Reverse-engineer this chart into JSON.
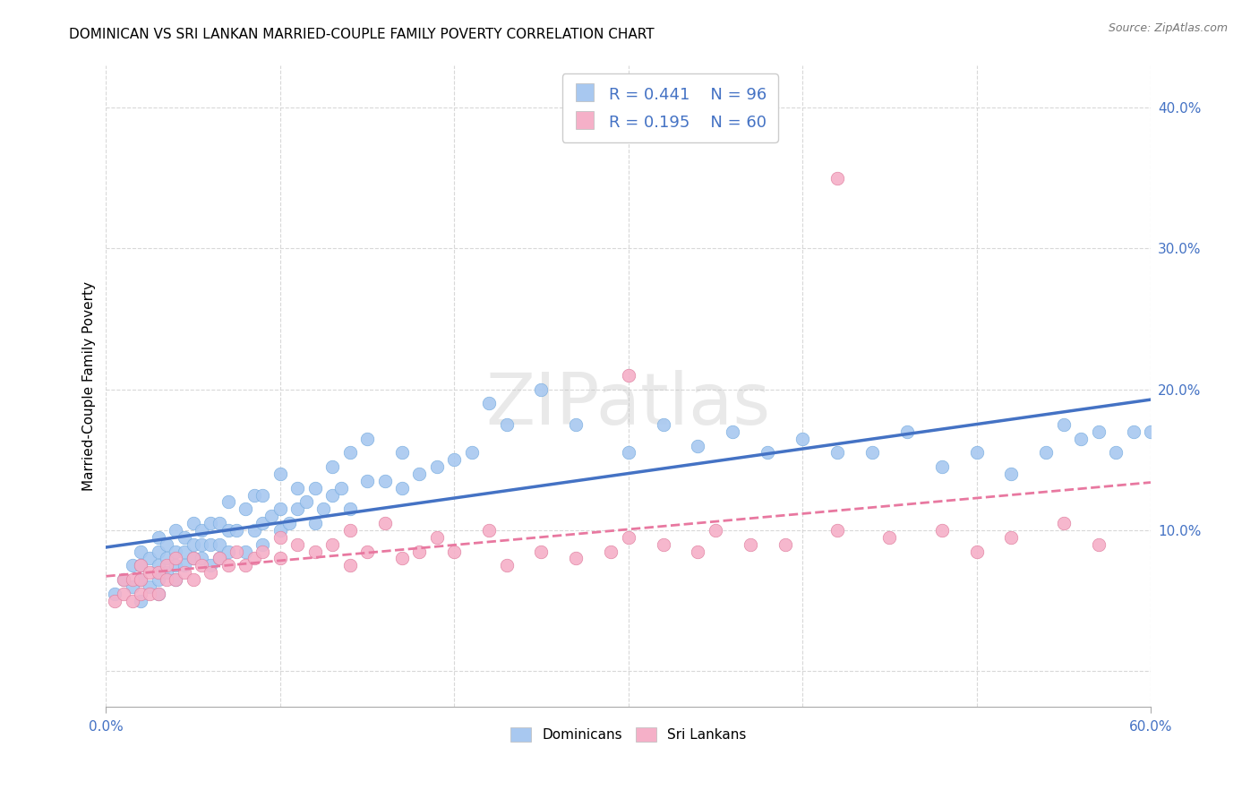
{
  "title": "DOMINICAN VS SRI LANKAN MARRIED-COUPLE FAMILY POVERTY CORRELATION CHART",
  "source": "Source: ZipAtlas.com",
  "ylabel": "Married-Couple Family Poverty",
  "xlim": [
    0.0,
    0.6
  ],
  "ylim": [
    -0.025,
    0.43
  ],
  "yticks": [
    0.0,
    0.1,
    0.2,
    0.3,
    0.4
  ],
  "xticks": [
    0.0,
    0.1,
    0.2,
    0.3,
    0.4,
    0.5,
    0.6
  ],
  "dominican_color": "#a8c8f0",
  "dominican_edge_color": "#7aaee0",
  "srilanka_color": "#f5b0c8",
  "srilanka_edge_color": "#e080a0",
  "dominican_line_color": "#4472c4",
  "srilanka_line_color": "#e878a0",
  "r_dominican": 0.441,
  "n_dominican": 96,
  "r_srilanka": 0.195,
  "n_srilanka": 60,
  "background_color": "#ffffff",
  "grid_color": "#d8d8d8",
  "title_fontsize": 11,
  "axis_label_color": "#4472c4",
  "watermark": "ZIPatlas",
  "dominican_x": [
    0.005,
    0.01,
    0.015,
    0.015,
    0.02,
    0.02,
    0.02,
    0.02,
    0.025,
    0.025,
    0.03,
    0.03,
    0.03,
    0.03,
    0.03,
    0.035,
    0.035,
    0.035,
    0.04,
    0.04,
    0.04,
    0.04,
    0.045,
    0.045,
    0.045,
    0.05,
    0.05,
    0.05,
    0.055,
    0.055,
    0.055,
    0.06,
    0.06,
    0.06,
    0.065,
    0.065,
    0.065,
    0.07,
    0.07,
    0.07,
    0.075,
    0.08,
    0.08,
    0.085,
    0.085,
    0.09,
    0.09,
    0.09,
    0.095,
    0.1,
    0.1,
    0.1,
    0.105,
    0.11,
    0.11,
    0.115,
    0.12,
    0.12,
    0.125,
    0.13,
    0.13,
    0.135,
    0.14,
    0.14,
    0.15,
    0.15,
    0.16,
    0.17,
    0.17,
    0.18,
    0.19,
    0.2,
    0.21,
    0.22,
    0.23,
    0.25,
    0.27,
    0.3,
    0.32,
    0.34,
    0.36,
    0.38,
    0.4,
    0.42,
    0.44,
    0.46,
    0.48,
    0.5,
    0.52,
    0.54,
    0.55,
    0.56,
    0.57,
    0.58,
    0.59,
    0.6
  ],
  "dominican_y": [
    0.055,
    0.065,
    0.06,
    0.075,
    0.05,
    0.065,
    0.075,
    0.085,
    0.06,
    0.08,
    0.055,
    0.065,
    0.075,
    0.085,
    0.095,
    0.07,
    0.08,
    0.09,
    0.065,
    0.075,
    0.085,
    0.1,
    0.075,
    0.085,
    0.095,
    0.08,
    0.09,
    0.105,
    0.08,
    0.09,
    0.1,
    0.075,
    0.09,
    0.105,
    0.08,
    0.09,
    0.105,
    0.085,
    0.1,
    0.12,
    0.1,
    0.085,
    0.115,
    0.1,
    0.125,
    0.09,
    0.105,
    0.125,
    0.11,
    0.1,
    0.115,
    0.14,
    0.105,
    0.115,
    0.13,
    0.12,
    0.105,
    0.13,
    0.115,
    0.125,
    0.145,
    0.13,
    0.115,
    0.155,
    0.135,
    0.165,
    0.135,
    0.13,
    0.155,
    0.14,
    0.145,
    0.15,
    0.155,
    0.19,
    0.175,
    0.2,
    0.175,
    0.155,
    0.175,
    0.16,
    0.17,
    0.155,
    0.165,
    0.155,
    0.155,
    0.17,
    0.145,
    0.155,
    0.14,
    0.155,
    0.175,
    0.165,
    0.17,
    0.155,
    0.17,
    0.17
  ],
  "srilanka_x": [
    0.005,
    0.01,
    0.01,
    0.015,
    0.015,
    0.02,
    0.02,
    0.02,
    0.025,
    0.025,
    0.03,
    0.03,
    0.035,
    0.035,
    0.04,
    0.04,
    0.045,
    0.05,
    0.05,
    0.055,
    0.06,
    0.065,
    0.07,
    0.075,
    0.08,
    0.085,
    0.09,
    0.1,
    0.1,
    0.11,
    0.12,
    0.13,
    0.14,
    0.14,
    0.15,
    0.16,
    0.17,
    0.18,
    0.19,
    0.2,
    0.22,
    0.23,
    0.25,
    0.27,
    0.29,
    0.3,
    0.32,
    0.34,
    0.35,
    0.37,
    0.39,
    0.42,
    0.45,
    0.48,
    0.5,
    0.52,
    0.55,
    0.57,
    0.42,
    0.3
  ],
  "srilanka_y": [
    0.05,
    0.055,
    0.065,
    0.05,
    0.065,
    0.055,
    0.065,
    0.075,
    0.055,
    0.07,
    0.055,
    0.07,
    0.065,
    0.075,
    0.065,
    0.08,
    0.07,
    0.065,
    0.08,
    0.075,
    0.07,
    0.08,
    0.075,
    0.085,
    0.075,
    0.08,
    0.085,
    0.08,
    0.095,
    0.09,
    0.085,
    0.09,
    0.075,
    0.1,
    0.085,
    0.105,
    0.08,
    0.085,
    0.095,
    0.085,
    0.1,
    0.075,
    0.085,
    0.08,
    0.085,
    0.095,
    0.09,
    0.085,
    0.1,
    0.09,
    0.09,
    0.1,
    0.095,
    0.1,
    0.085,
    0.095,
    0.105,
    0.09,
    0.35,
    0.21
  ]
}
